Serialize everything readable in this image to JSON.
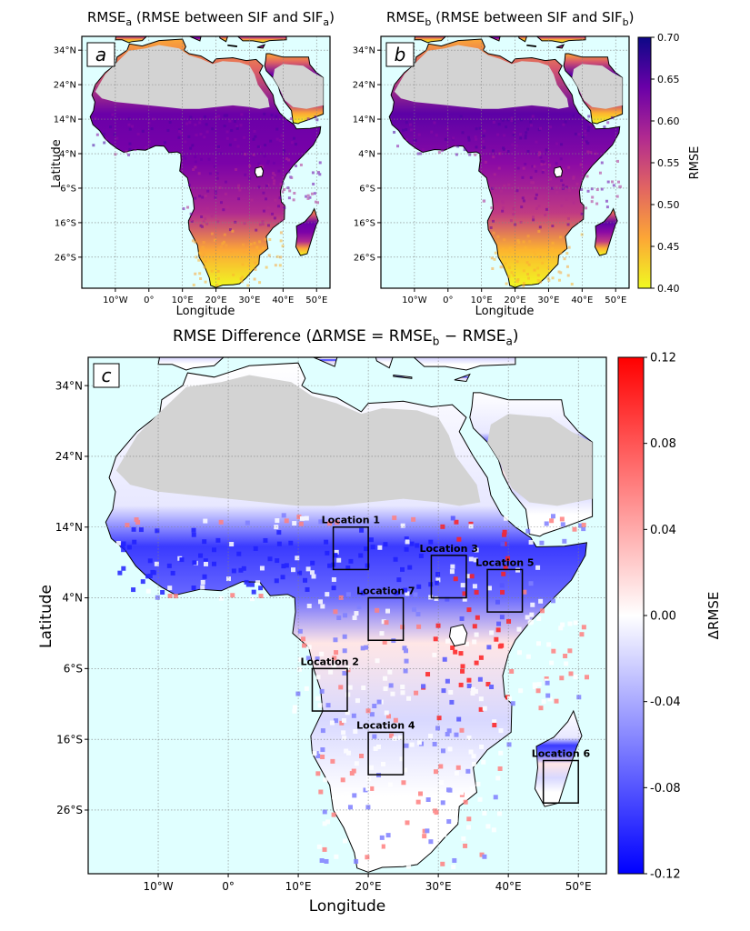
{
  "panel_a": {
    "title_main": "RMSE",
    "title_sub": "a",
    "title_rest": " (RMSE between SIF and SIF",
    "title_sub2": "a",
    "title_end": ")",
    "label": "a",
    "xlabel": "Longitude",
    "ylabel": "Latitude"
  },
  "panel_b": {
    "title_main": "RMSE",
    "title_sub": "b",
    "title_rest": " (RMSE between SIF and SIF",
    "title_sub2": "b",
    "title_end": ")",
    "label": "b",
    "xlabel": "Longitude"
  },
  "panel_c": {
    "title_main": "RMSE Difference (ΔRMSE = RMSE",
    "title_sub": "b",
    "title_mid": " − RMSE",
    "title_sub2": "a",
    "title_end": ")",
    "label": "c",
    "xlabel": "Longitude",
    "ylabel": "Latitude"
  },
  "lat_ticks_small": [
    "34°N",
    "24°N",
    "14°N",
    "4°N",
    "6°S",
    "16°S",
    "26°S"
  ],
  "lon_ticks_small": [
    "10°W",
    "0°",
    "10°E",
    "20°E",
    "30°E",
    "40°E",
    "50°E"
  ],
  "lat_ticks_large": [
    "34°N",
    "24°N",
    "14°N",
    "4°N",
    "6°S",
    "16°S",
    "26°S"
  ],
  "lon_ticks_large": [
    "10°W",
    "0°",
    "10°E",
    "20°E",
    "30°E",
    "40°E",
    "50°E"
  ],
  "colorbar_top": {
    "label": "RMSE",
    "ticks": [
      "0.70",
      "0.65",
      "0.60",
      "0.55",
      "0.50",
      "0.45",
      "0.40"
    ],
    "min": 0.4,
    "max": 0.7,
    "colors": [
      "#f0f921",
      "#fca636",
      "#e16462",
      "#b12a90",
      "#6a00a8",
      "#0d0887"
    ]
  },
  "colorbar_bottom": {
    "label": "ΔRMSE",
    "ticks": [
      "0.12",
      "0.08",
      "0.04",
      "0.00",
      "-0.04",
      "-0.08",
      "-0.12"
    ],
    "min": -0.12,
    "max": 0.12,
    "colors": [
      "#0000ff",
      "#ffffff",
      "#ff0000"
    ]
  },
  "locations": [
    {
      "label": "Location 1",
      "lon": [
        15,
        20
      ],
      "lat": [
        8,
        14
      ]
    },
    {
      "label": "Location 2",
      "lon": [
        12,
        17
      ],
      "lat": [
        -12,
        -6
      ]
    },
    {
      "label": "Location 3",
      "lon": [
        29,
        34
      ],
      "lat": [
        4,
        10
      ]
    },
    {
      "label": "Location 4",
      "lon": [
        20,
        25
      ],
      "lat": [
        -21,
        -15
      ]
    },
    {
      "label": "Location 5",
      "lon": [
        37,
        42
      ],
      "lat": [
        2,
        8
      ]
    },
    {
      "label": "Location 6",
      "lon": [
        45,
        50
      ],
      "lat": [
        -25,
        -19
      ]
    },
    {
      "label": "Location 7",
      "lon": [
        20,
        25
      ],
      "lat": [
        -2,
        4
      ]
    }
  ]
}
